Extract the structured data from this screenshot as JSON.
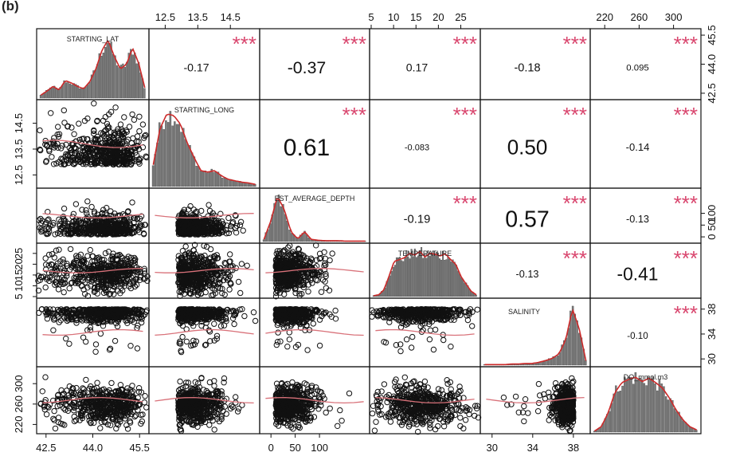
{
  "panel_label": "(b)",
  "chart_data": {
    "type": "scatter-matrix",
    "variables": [
      {
        "name": "STARTING_LAT",
        "ticks": [
          42.5,
          44.0,
          45.5
        ],
        "tick_labels": [
          "42.5",
          "44.0",
          "45.5"
        ],
        "range": [
          42.25,
          45.75
        ],
        "tick_side": "right-top"
      },
      {
        "name": "STARTING_LONG",
        "ticks": [
          12.5,
          13.5,
          14.5
        ],
        "tick_labels": [
          "12.5",
          "13.5",
          "14.5"
        ],
        "range": [
          12.05,
          15.35
        ]
      },
      {
        "name": "EST_AVERAGE_DEPTH",
        "ticks": [
          0,
          50,
          100
        ],
        "tick_labels": [
          "0",
          "50",
          "100"
        ],
        "range": [
          -20,
          200
        ]
      },
      {
        "name": "TEMPERATURE",
        "ticks": [
          5,
          10,
          15,
          20,
          25
        ],
        "tick_labels": [
          "5",
          "10",
          "15",
          "20",
          "25"
        ],
        "range": [
          5,
          29
        ]
      },
      {
        "name": "SALINITY",
        "ticks": [
          30,
          34,
          38
        ],
        "tick_labels": [
          "30",
          "34",
          "38"
        ],
        "range": [
          29,
          39.5
        ]
      },
      {
        "name": "DO_mmol.m3",
        "ticks": [
          220,
          260,
          300
        ],
        "tick_labels": [
          "220",
          "260",
          "300"
        ],
        "range": [
          205,
          330
        ]
      }
    ],
    "correlations": [
      {
        "row": 0,
        "col": 1,
        "r": "-0.17",
        "stars": "***"
      },
      {
        "row": 0,
        "col": 2,
        "r": "-0.37",
        "stars": "***"
      },
      {
        "row": 0,
        "col": 3,
        "r": "0.17",
        "stars": "***"
      },
      {
        "row": 0,
        "col": 4,
        "r": "-0.18",
        "stars": "***"
      },
      {
        "row": 0,
        "col": 5,
        "r": "0.095",
        "stars": "***"
      },
      {
        "row": 1,
        "col": 2,
        "r": "0.61",
        "stars": "***"
      },
      {
        "row": 1,
        "col": 3,
        "r": "-0.083",
        "stars": "***"
      },
      {
        "row": 1,
        "col": 4,
        "r": "0.50",
        "stars": "***"
      },
      {
        "row": 1,
        "col": 5,
        "r": "-0.14",
        "stars": "***"
      },
      {
        "row": 2,
        "col": 3,
        "r": "-0.19",
        "stars": "***"
      },
      {
        "row": 2,
        "col": 4,
        "r": "0.57",
        "stars": "***"
      },
      {
        "row": 2,
        "col": 5,
        "r": "-0.13",
        "stars": "***"
      },
      {
        "row": 3,
        "col": 4,
        "r": "-0.13",
        "stars": "***"
      },
      {
        "row": 3,
        "col": 5,
        "r": "-0.41",
        "stars": "***"
      },
      {
        "row": 4,
        "col": 5,
        "r": "-0.10",
        "stars": "***"
      }
    ],
    "histogram_densities": [
      [
        0.05,
        0.12,
        0.2,
        0.14,
        0.3,
        0.26,
        0.2,
        0.16,
        0.28,
        0.5,
        0.82,
        1.0,
        0.72,
        0.5,
        0.58,
        0.86,
        0.6,
        0.18
      ],
      [
        0.3,
        0.8,
        1.0,
        0.98,
        0.86,
        0.6,
        0.4,
        0.22,
        0.2,
        0.22,
        0.15,
        0.1,
        0.08,
        0.06,
        0.05,
        0.03
      ],
      [
        0.05,
        0.45,
        1.0,
        0.72,
        0.22,
        0.06,
        0.22,
        0.05,
        0.03,
        0.02,
        0.02,
        0.02,
        0.01,
        0.01,
        0.01,
        0.01
      ],
      [
        0.02,
        0.04,
        0.15,
        0.45,
        0.78,
        0.82,
        0.86,
        0.96,
        0.92,
        1.0,
        0.88,
        0.96,
        0.94,
        0.9,
        0.95,
        0.82,
        0.72,
        0.45,
        0.28,
        0.12,
        0.04
      ],
      [
        0.01,
        0.01,
        0.01,
        0.01,
        0.02,
        0.02,
        0.03,
        0.03,
        0.05,
        0.08,
        0.12,
        0.2,
        0.45,
        1.0,
        0.65,
        0.08
      ],
      [
        0.02,
        0.1,
        0.35,
        0.72,
        0.9,
        0.96,
        1.0,
        0.92,
        0.98,
        0.9,
        0.8,
        0.62,
        0.4,
        0.22,
        0.1,
        0.04
      ]
    ],
    "colors": {
      "points": "#111111",
      "smooth": "#d9727a",
      "density": "#cc2a2a",
      "stars": "#d9466e",
      "bars": "#7a7a7a",
      "frame": "#111111"
    }
  }
}
